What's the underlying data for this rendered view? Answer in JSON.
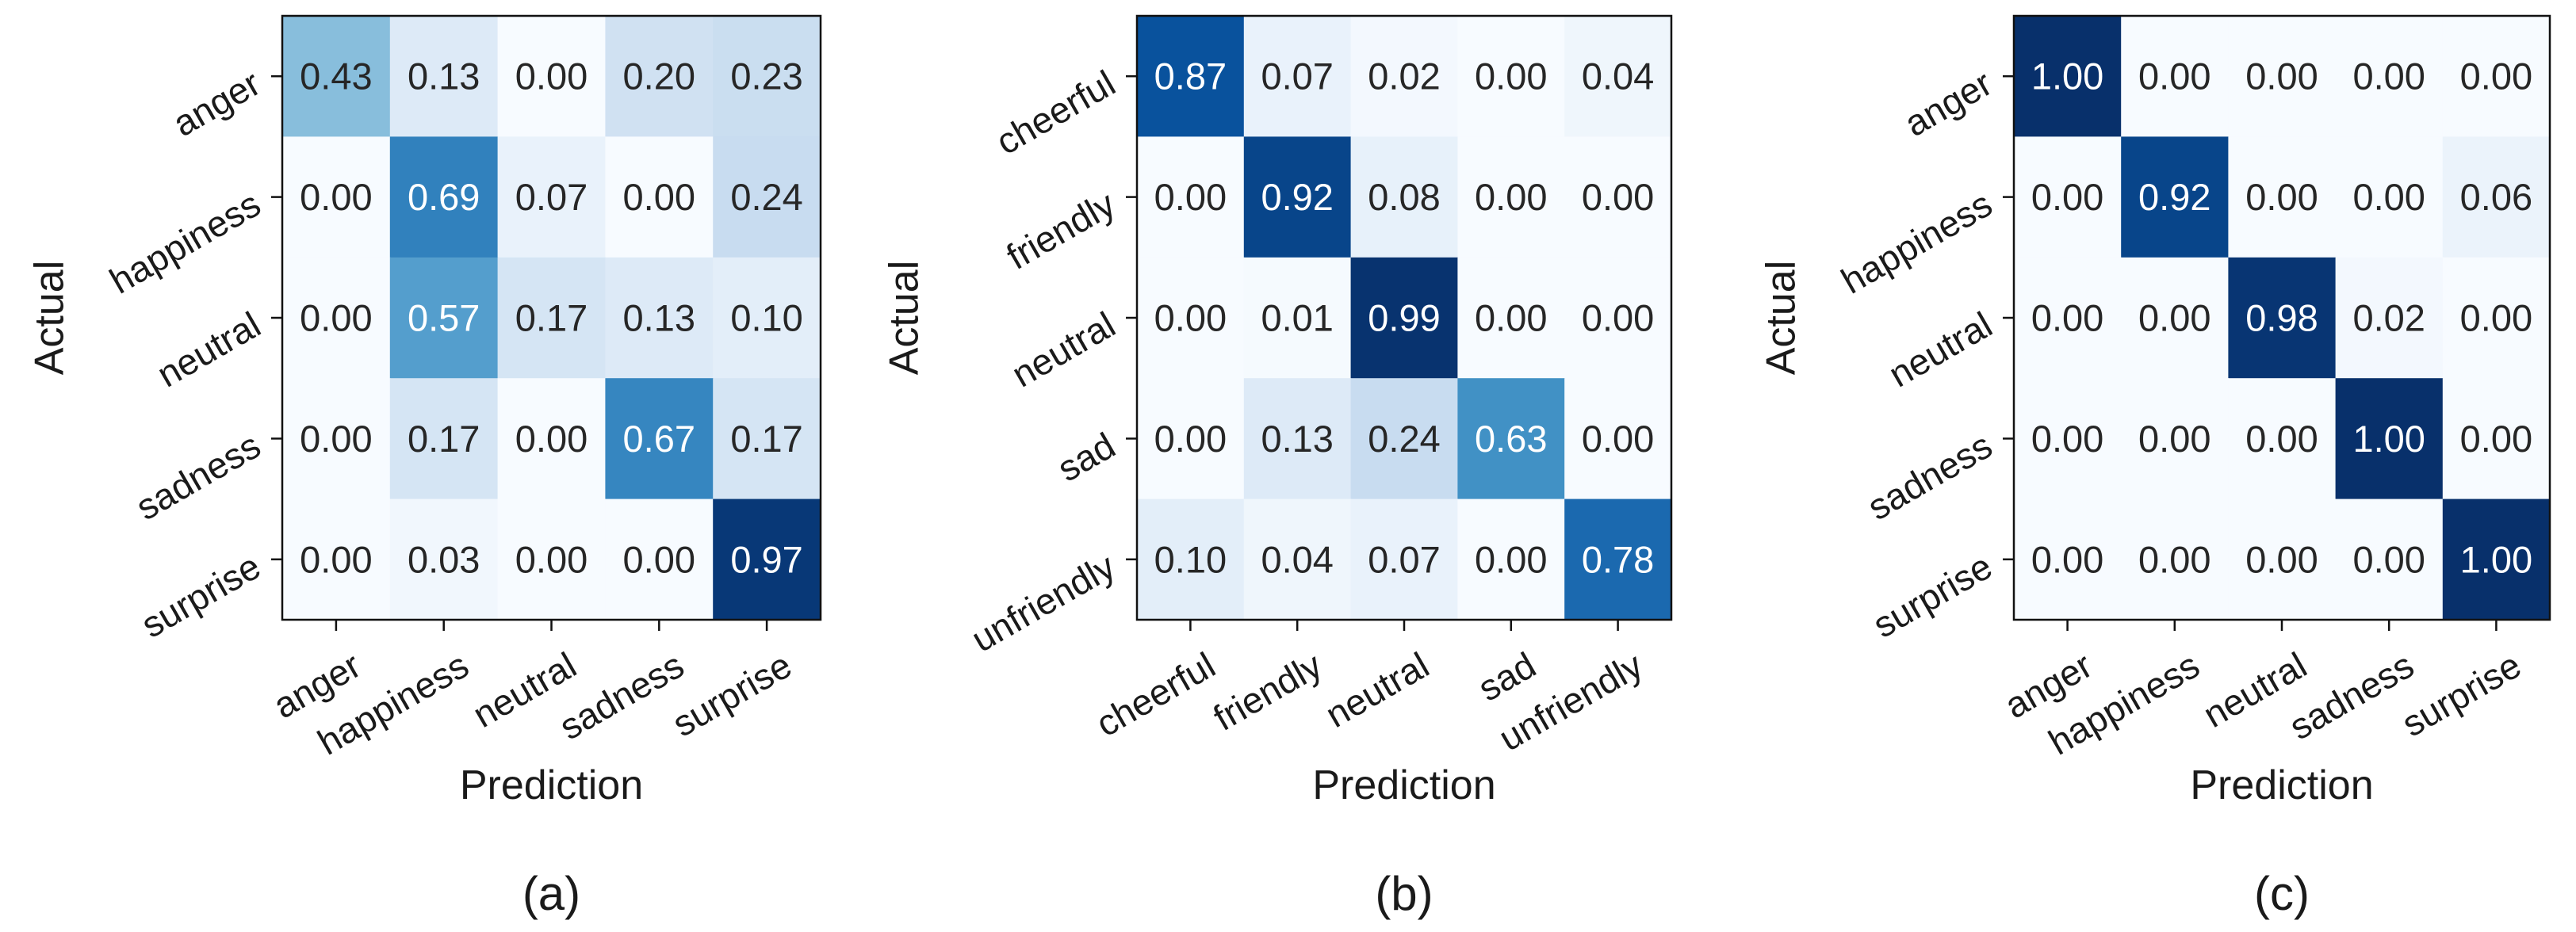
{
  "chart_data": [
    {
      "type": "heatmap",
      "panel_label": "(a)",
      "xlabel": "Prediction",
      "ylabel": "Actual",
      "x_categories": [
        "anger",
        "happiness",
        "neutral",
        "sadness",
        "surprise"
      ],
      "y_categories": [
        "anger",
        "happiness",
        "neutral",
        "sadness",
        "surprise"
      ],
      "values": [
        [
          0.43,
          0.13,
          0.0,
          0.2,
          0.23
        ],
        [
          0.0,
          0.69,
          0.07,
          0.0,
          0.24
        ],
        [
          0.0,
          0.57,
          0.17,
          0.13,
          0.1
        ],
        [
          0.0,
          0.17,
          0.0,
          0.67,
          0.17
        ],
        [
          0.0,
          0.03,
          0.0,
          0.0,
          0.97
        ]
      ],
      "value_format": "0.00",
      "colormap": "Blues",
      "vmin": 0,
      "vmax": 1
    },
    {
      "type": "heatmap",
      "panel_label": "(b)",
      "xlabel": "Prediction",
      "ylabel": "Actual",
      "x_categories": [
        "cheerful",
        "friendly",
        "neutral",
        "sad",
        "unfriendly"
      ],
      "y_categories": [
        "cheerful",
        "friendly",
        "neutral",
        "sad",
        "unfriendly"
      ],
      "values": [
        [
          0.87,
          0.07,
          0.02,
          0.0,
          0.04
        ],
        [
          0.0,
          0.92,
          0.08,
          0.0,
          0.0
        ],
        [
          0.0,
          0.01,
          0.99,
          0.0,
          0.0
        ],
        [
          0.0,
          0.13,
          0.24,
          0.63,
          0.0
        ],
        [
          0.1,
          0.04,
          0.07,
          0.0,
          0.78
        ]
      ],
      "value_format": "0.00",
      "colormap": "Blues",
      "vmin": 0,
      "vmax": 1
    },
    {
      "type": "heatmap",
      "panel_label": "(c)",
      "xlabel": "Prediction",
      "ylabel": "Actual",
      "x_categories": [
        "anger",
        "happiness",
        "neutral",
        "sadness",
        "surprise"
      ],
      "y_categories": [
        "anger",
        "happiness",
        "neutral",
        "sadness",
        "surprise"
      ],
      "values": [
        [
          1.0,
          0.0,
          0.0,
          0.0,
          0.0
        ],
        [
          0.0,
          0.92,
          0.0,
          0.0,
          0.06
        ],
        [
          0.0,
          0.0,
          0.98,
          0.02,
          0.0
        ],
        [
          0.0,
          0.0,
          0.0,
          1.0,
          0.0
        ],
        [
          0.0,
          0.0,
          0.0,
          0.0,
          1.0
        ]
      ],
      "value_format": "0.00",
      "colormap": "Blues",
      "vmin": 0,
      "vmax": 1
    }
  ]
}
